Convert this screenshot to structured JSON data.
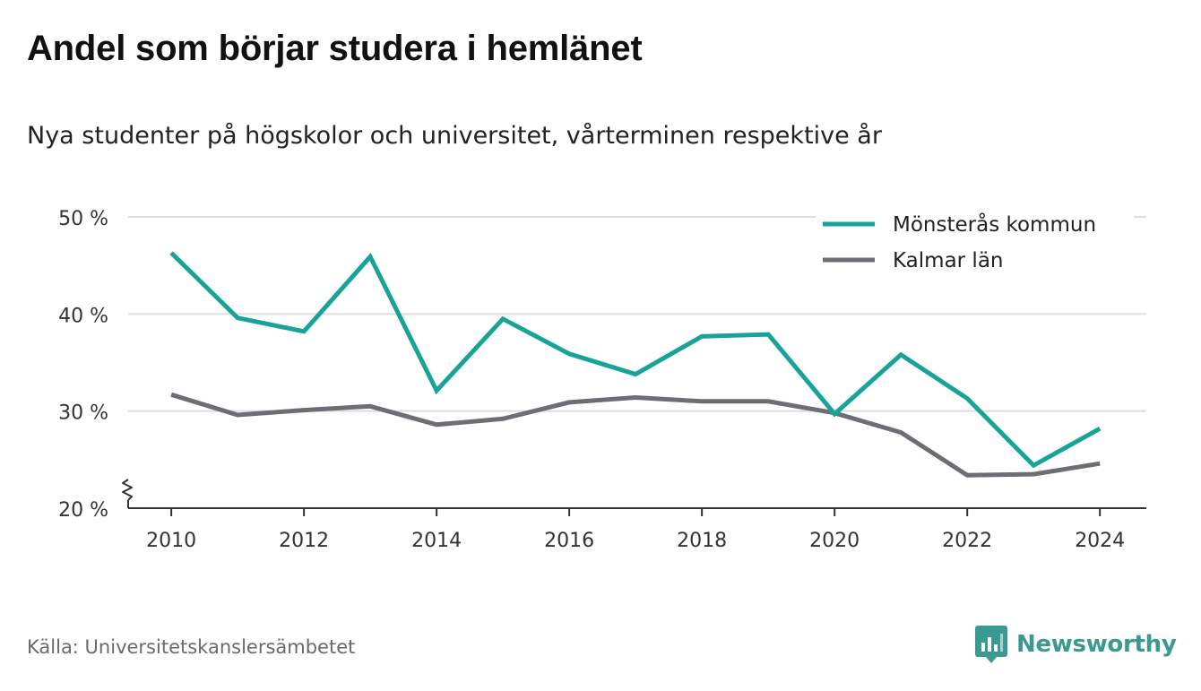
{
  "title": "Andel som börjar studera i hemlänet",
  "subtitle": "Nya studenter på högskolor och universitet, vårterminen respektive år",
  "source": "Källa: Universitetskanslersämbetet",
  "brand": {
    "name": "Newsworthy",
    "icon": "newsworthy-logo-icon",
    "color": "#3a9a91"
  },
  "chart_data": {
    "type": "line",
    "x": [
      2010,
      2011,
      2012,
      2013,
      2014,
      2015,
      2016,
      2017,
      2018,
      2019,
      2020,
      2021,
      2022,
      2023,
      2024
    ],
    "x_ticks": [
      2010,
      2012,
      2014,
      2016,
      2018,
      2020,
      2022,
      2024
    ],
    "x_tick_labels": [
      "2010",
      "2012",
      "2014",
      "2016",
      "2018",
      "2020",
      "2022",
      "2024"
    ],
    "y_ticks": [
      20,
      30,
      40,
      50
    ],
    "y_tick_labels": [
      "20 %",
      "30 %",
      "40 %",
      "50 %"
    ],
    "xlim": [
      2009.35,
      2024.7
    ],
    "ylim": [
      20,
      50
    ],
    "y_axis_break": true,
    "grid": true,
    "legend_position": "top-right",
    "series": [
      {
        "name": "Mönsterås kommun",
        "color": "#17a398",
        "values": [
          46.3,
          39.6,
          38.2,
          45.9,
          32.1,
          39.5,
          35.9,
          33.8,
          37.7,
          37.9,
          29.7,
          35.8,
          31.3,
          24.4,
          28.2
        ]
      },
      {
        "name": "Kalmar län",
        "color": "#6e6d73",
        "values": [
          31.7,
          29.6,
          30.1,
          30.5,
          28.6,
          29.2,
          30.9,
          31.4,
          31.0,
          31.0,
          29.8,
          27.8,
          23.4,
          23.5,
          24.6
        ]
      }
    ]
  }
}
